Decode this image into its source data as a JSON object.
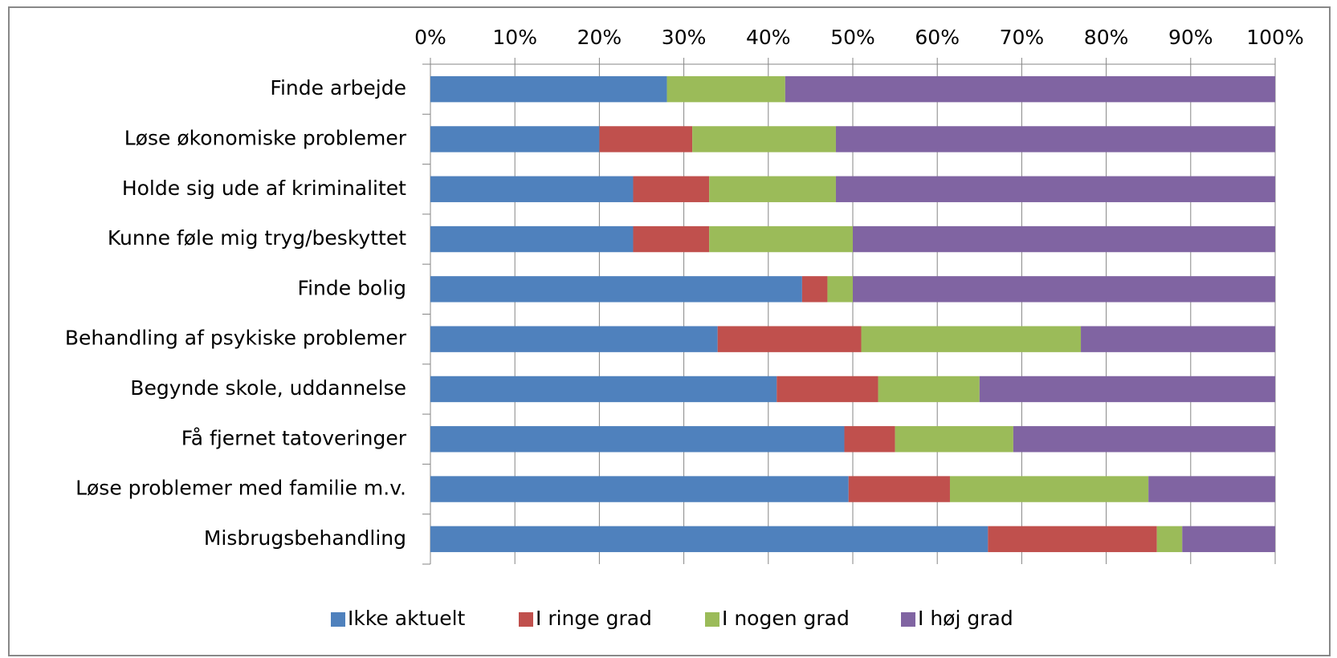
{
  "chart_data": {
    "type": "stacked_bar_horizontal",
    "categories": [
      "Finde arbejde",
      "Løse økonomiske problemer",
      "Holde sig ude af kriminalitet",
      "Kunne føle mig tryg/beskyttet",
      "Finde bolig",
      "Behandling af psykiske problemer",
      "Begynde skole, uddannelse",
      "Få fjernet tatoveringer",
      "Løse problemer med familie m.v.",
      "Misbrugsbehandling"
    ],
    "series": [
      {
        "name": "Ikke aktuelt",
        "color": "#4f81bd",
        "values": [
          28,
          20,
          24,
          24,
          44,
          34,
          41,
          49,
          49.5,
          66
        ]
      },
      {
        "name": "I ringe grad",
        "color": "#c0504d",
        "values": [
          0,
          11,
          9,
          9,
          3,
          17,
          12,
          6,
          12,
          20
        ]
      },
      {
        "name": "I nogen grad",
        "color": "#9bbb59",
        "values": [
          14,
          17,
          15,
          17,
          3,
          26,
          12,
          14,
          23.5,
          3
        ]
      },
      {
        "name": "I høj grad",
        "color": "#8064a2",
        "values": [
          58,
          52,
          52,
          50,
          50,
          23,
          35,
          31,
          15,
          11
        ]
      }
    ],
    "xlim": [
      0,
      100
    ],
    "xticks": [
      {
        "value": 0,
        "label": "0%"
      },
      {
        "value": 10,
        "label": "10%"
      },
      {
        "value": 20,
        "label": "20%"
      },
      {
        "value": 30,
        "label": "30%"
      },
      {
        "value": 40,
        "label": "40%"
      },
      {
        "value": 50,
        "label": "50%"
      },
      {
        "value": 60,
        "label": "60%"
      },
      {
        "value": 70,
        "label": "70%"
      },
      {
        "value": 80,
        "label": "80%"
      },
      {
        "value": 90,
        "label": "90%"
      },
      {
        "value": 100,
        "label": "100%"
      }
    ],
    "grid": true,
    "legend": "bottom"
  }
}
